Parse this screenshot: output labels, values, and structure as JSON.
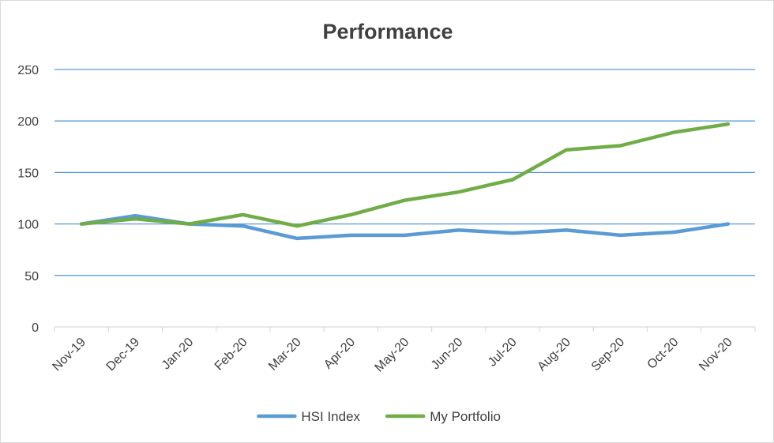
{
  "chart_data": {
    "type": "line",
    "title": "Performance",
    "xlabel": "",
    "ylabel": "",
    "categories": [
      "Nov-19",
      "Dec-19",
      "Jan-20",
      "Feb-20",
      "Mar-20",
      "Apr-20",
      "May-20",
      "Jun-20",
      "Jul-20",
      "Aug-20",
      "Sep-20",
      "Oct-20",
      "Nov-20"
    ],
    "ylim": [
      0,
      250
    ],
    "yticks": [
      0,
      50,
      100,
      150,
      200,
      250
    ],
    "grid": true,
    "legend_position": "bottom",
    "series": [
      {
        "name": "HSI Index",
        "color": "#5B9BD5",
        "values": [
          100,
          108,
          100,
          98,
          86,
          89,
          89,
          94,
          91,
          94,
          89,
          92,
          100
        ]
      },
      {
        "name": "My Portfolio",
        "color": "#70AD47",
        "values": [
          100,
          105,
          100,
          109,
          98,
          109,
          123,
          131,
          143,
          172,
          176,
          189,
          197
        ]
      }
    ]
  },
  "colors": {
    "gridline": "#5B9BD5",
    "axis": "#d9d9d9",
    "text": "#404040"
  }
}
